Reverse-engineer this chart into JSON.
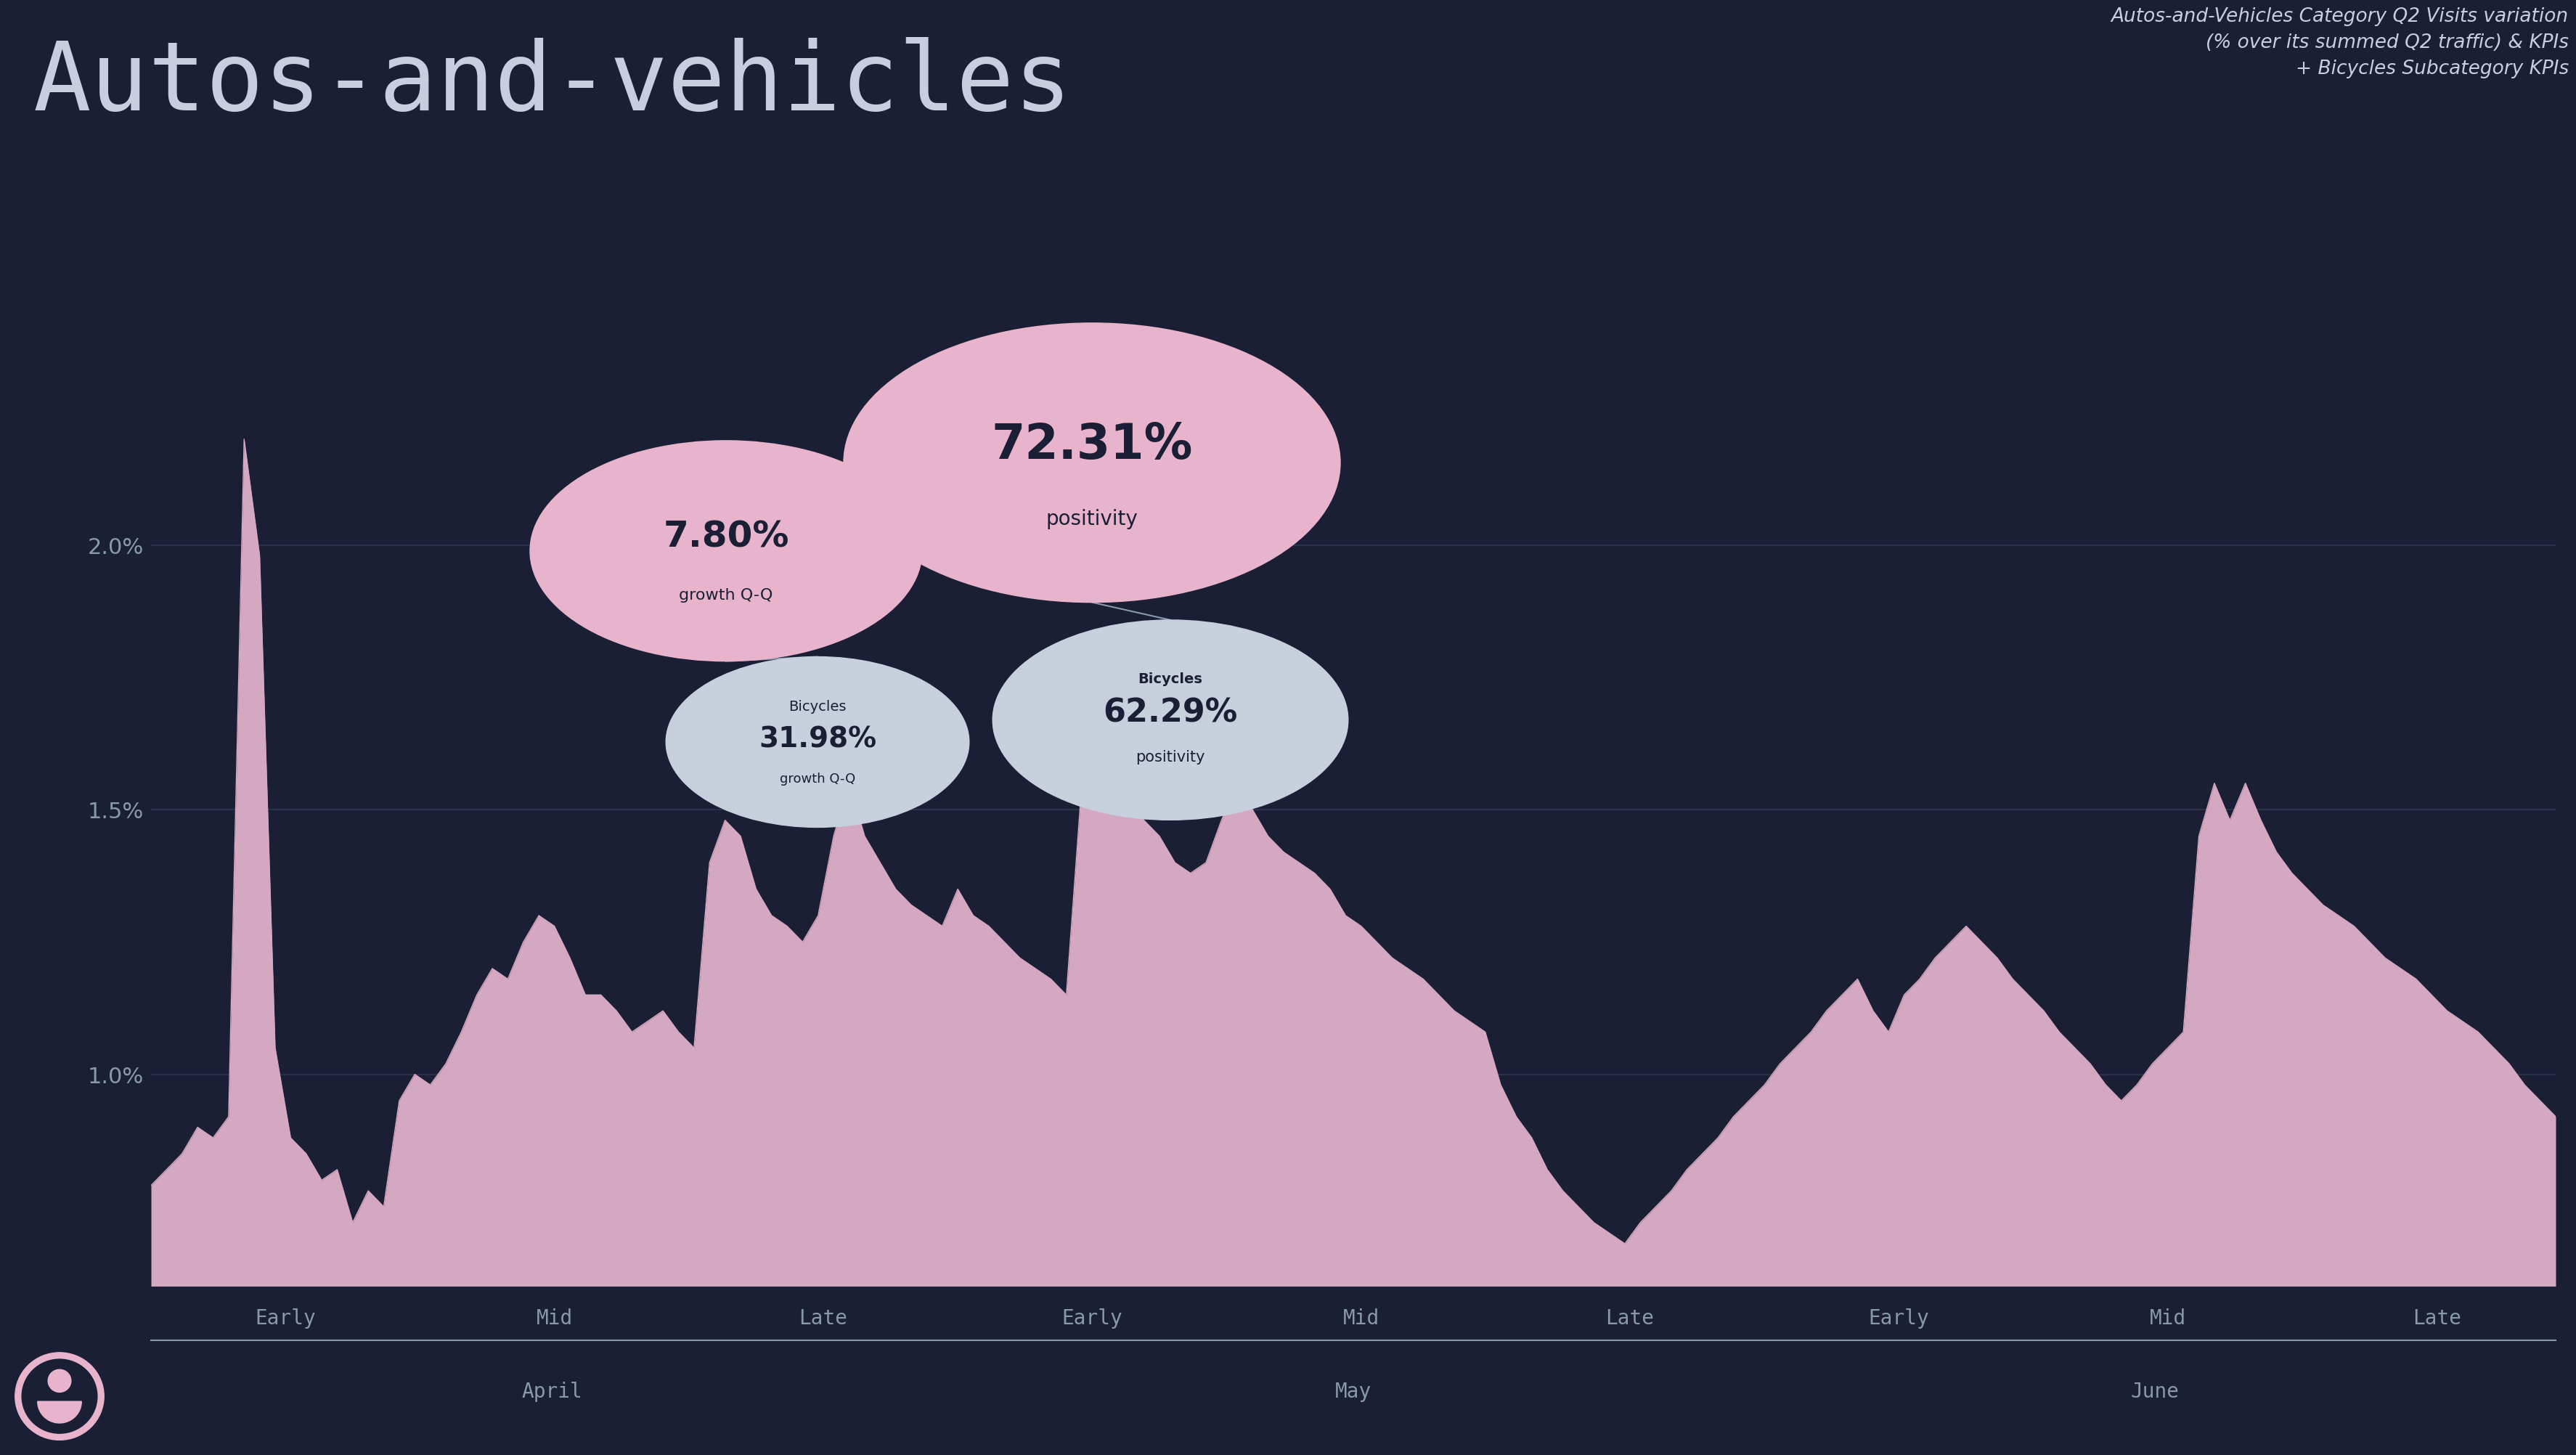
{
  "title": "Autos-and-vehicles",
  "subtitle": "Autos-and-Vehicles Category Q2 Visits variation\n(% over its summed Q2 traffic) & KPIs\n+ Bicycles Subcategory KPIs",
  "background_color": "#1a1f35",
  "chart_area_color": "#1a1f35",
  "title_color": "#c8cee0",
  "subtitle_color": "#c8cee0",
  "area_fill_color": "#d4a8c0",
  "area_line_color": "#d4a8c0",
  "grid_color": "#2e3550",
  "tick_color": "#8899aa",
  "ylim": [
    0.006,
    0.026
  ],
  "yticks": [
    0.01,
    0.015,
    0.02
  ],
  "ytick_labels": [
    "1.0%",
    "1.5%",
    "2.0%"
  ],
  "x_labels_top": [
    "Early",
    "Mid",
    "Late",
    "Early",
    "Mid",
    "Late",
    "Early",
    "Mid",
    "Late"
  ],
  "x_months": [
    "April",
    "May",
    "June"
  ],
  "bubble1_pct": "7.80%",
  "bubble1_label": "growth Q-Q",
  "bubble1_color": "#e8b4cc",
  "bubble1_text_color": "#1a1f35",
  "bubble2_pct": "72.31%",
  "bubble2_label": "positivity",
  "bubble2_color": "#e8b4cc",
  "bubble2_text_color": "#1a1f35",
  "bubble3_pct": "31.98%",
  "bubble3_label": "growth Q-Q",
  "bubble3_title": "Bicycles",
  "bubble3_color": "#c8d0de",
  "bubble3_text_color": "#1a1f35",
  "bubble4_pct": "62.29%",
  "bubble4_label": "positivity",
  "bubble4_title": "Bicycles",
  "bubble4_color": "#c8d0de",
  "bubble4_text_color": "#1a1f35",
  "logo_color": "#e8b4cc",
  "y_values": [
    0.0079,
    0.0082,
    0.0085,
    0.009,
    0.0088,
    0.0092,
    0.022,
    0.0198,
    0.0105,
    0.0088,
    0.0085,
    0.008,
    0.0082,
    0.0072,
    0.0078,
    0.0075,
    0.0095,
    0.01,
    0.0098,
    0.0102,
    0.0108,
    0.0115,
    0.012,
    0.0118,
    0.0125,
    0.013,
    0.0128,
    0.0122,
    0.0115,
    0.0115,
    0.0112,
    0.0108,
    0.011,
    0.0112,
    0.0108,
    0.0105,
    0.014,
    0.0148,
    0.0145,
    0.0135,
    0.013,
    0.0128,
    0.0125,
    0.013,
    0.0145,
    0.0155,
    0.0145,
    0.014,
    0.0135,
    0.0132,
    0.013,
    0.0128,
    0.0135,
    0.013,
    0.0128,
    0.0125,
    0.0122,
    0.012,
    0.0118,
    0.0115,
    0.0155,
    0.0162,
    0.0158,
    0.0152,
    0.0148,
    0.0145,
    0.014,
    0.0138,
    0.014,
    0.0148,
    0.0155,
    0.015,
    0.0145,
    0.0142,
    0.014,
    0.0138,
    0.0135,
    0.013,
    0.0128,
    0.0125,
    0.0122,
    0.012,
    0.0118,
    0.0115,
    0.0112,
    0.011,
    0.0108,
    0.0098,
    0.0092,
    0.0088,
    0.0082,
    0.0078,
    0.0075,
    0.0072,
    0.007,
    0.0068,
    0.0072,
    0.0075,
    0.0078,
    0.0082,
    0.0085,
    0.0088,
    0.0092,
    0.0095,
    0.0098,
    0.0102,
    0.0105,
    0.0108,
    0.0112,
    0.0115,
    0.0118,
    0.0112,
    0.0108,
    0.0115,
    0.0118,
    0.0122,
    0.0125,
    0.0128,
    0.0125,
    0.0122,
    0.0118,
    0.0115,
    0.0112,
    0.0108,
    0.0105,
    0.0102,
    0.0098,
    0.0095,
    0.0098,
    0.0102,
    0.0105,
    0.0108,
    0.0145,
    0.0155,
    0.0148,
    0.0155,
    0.0148,
    0.0142,
    0.0138,
    0.0135,
    0.0132,
    0.013,
    0.0128,
    0.0125,
    0.0122,
    0.012,
    0.0118,
    0.0115,
    0.0112,
    0.011,
    0.0108,
    0.0105,
    0.0102,
    0.0098,
    0.0095,
    0.0092
  ]
}
